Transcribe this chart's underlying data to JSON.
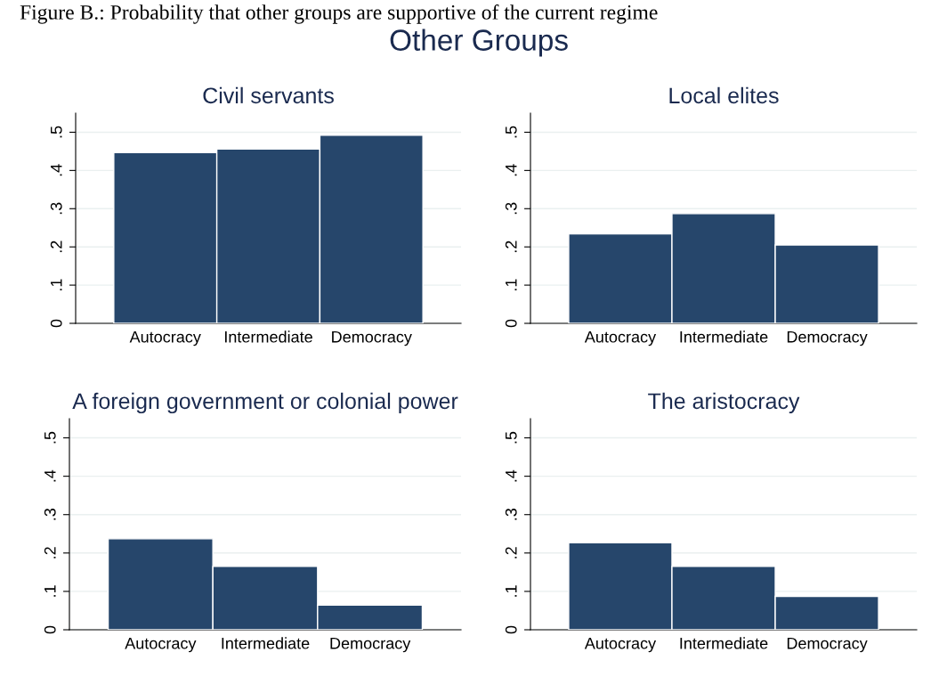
{
  "chart_data": [
    {
      "type": "bar",
      "title": "Civil servants",
      "annotations": [
        "Figure B.: Probability that other groups are supportive of the current regime",
        "Other Groups"
      ],
      "categories": [
        "Autocracy",
        "Intermediate",
        "Democracy"
      ],
      "values": [
        0.447,
        0.456,
        0.492
      ],
      "color": "#26466b",
      "ylim": [
        0,
        0.55
      ],
      "yticks": [
        {
          "value": 0,
          "label": "0"
        },
        {
          "value": 0.1,
          "label": ".1"
        },
        {
          "value": 0.2,
          "label": ".2"
        },
        {
          "value": 0.3,
          "label": ".3"
        },
        {
          "value": 0.4,
          "label": ".4"
        },
        {
          "value": 0.5,
          "label": ".5"
        }
      ],
      "grid": "y"
    },
    {
      "type": "bar",
      "title": "Local elites",
      "categories": [
        "Autocracy",
        "Intermediate",
        "Democracy"
      ],
      "values": [
        0.234,
        0.287,
        0.205
      ],
      "color": "#26466b",
      "ylim": [
        0,
        0.55
      ],
      "yticks": [
        {
          "value": 0,
          "label": "0"
        },
        {
          "value": 0.1,
          "label": ".1"
        },
        {
          "value": 0.2,
          "label": ".2"
        },
        {
          "value": 0.3,
          "label": ".3"
        },
        {
          "value": 0.4,
          "label": ".4"
        },
        {
          "value": 0.5,
          "label": ".5"
        }
      ],
      "grid": "y"
    },
    {
      "type": "bar",
      "title": "A foreign government or colonial power",
      "categories": [
        "Autocracy",
        "Intermediate",
        "Democracy"
      ],
      "values": [
        0.237,
        0.165,
        0.064
      ],
      "color": "#26466b",
      "ylim": [
        0,
        0.55
      ],
      "yticks": [
        {
          "value": 0,
          "label": "0"
        },
        {
          "value": 0.1,
          "label": ".1"
        },
        {
          "value": 0.2,
          "label": ".2"
        },
        {
          "value": 0.3,
          "label": ".3"
        },
        {
          "value": 0.4,
          "label": ".4"
        },
        {
          "value": 0.5,
          "label": ".5"
        }
      ],
      "grid": "y"
    },
    {
      "type": "bar",
      "title": "The aristocracy",
      "categories": [
        "Autocracy",
        "Intermediate",
        "Democracy"
      ],
      "values": [
        0.227,
        0.165,
        0.087
      ],
      "color": "#26466b",
      "ylim": [
        0,
        0.55
      ],
      "yticks": [
        {
          "value": 0,
          "label": "0"
        },
        {
          "value": 0.1,
          "label": ".1"
        },
        {
          "value": 0.2,
          "label": ".2"
        },
        {
          "value": 0.3,
          "label": ".3"
        },
        {
          "value": 0.4,
          "label": ".4"
        },
        {
          "value": 0.5,
          "label": ".5"
        }
      ],
      "grid": "y"
    }
  ]
}
